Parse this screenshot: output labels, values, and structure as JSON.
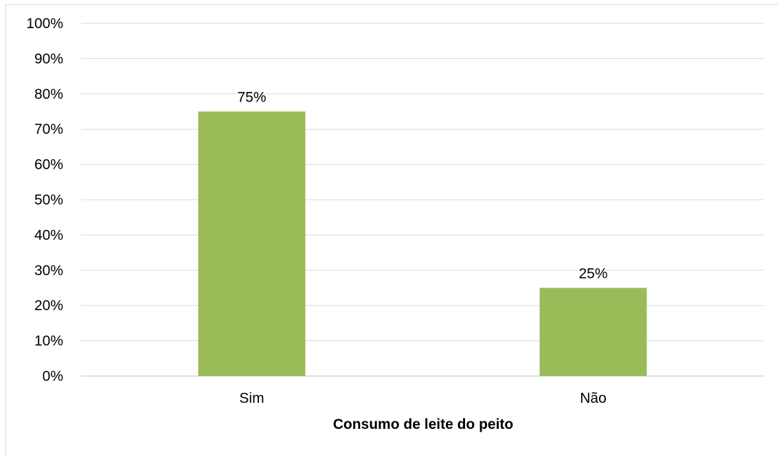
{
  "chart_data": {
    "type": "bar",
    "categories": [
      "Sim",
      "Não"
    ],
    "values": [
      75,
      25
    ],
    "data_labels": [
      "75%",
      "25%"
    ],
    "title": "",
    "xlabel": "Consumo de leite do peito",
    "ylabel": "",
    "ylim": [
      0,
      100
    ],
    "y_ticks": [
      "0%",
      "10%",
      "20%",
      "30%",
      "40%",
      "50%",
      "60%",
      "70%",
      "80%",
      "90%",
      "100%"
    ],
    "grid": true,
    "legend": "none",
    "colors": {
      "bar": "#9bbb59",
      "gridline": "#d9d9d9",
      "axis": "#bfbfbf"
    }
  }
}
